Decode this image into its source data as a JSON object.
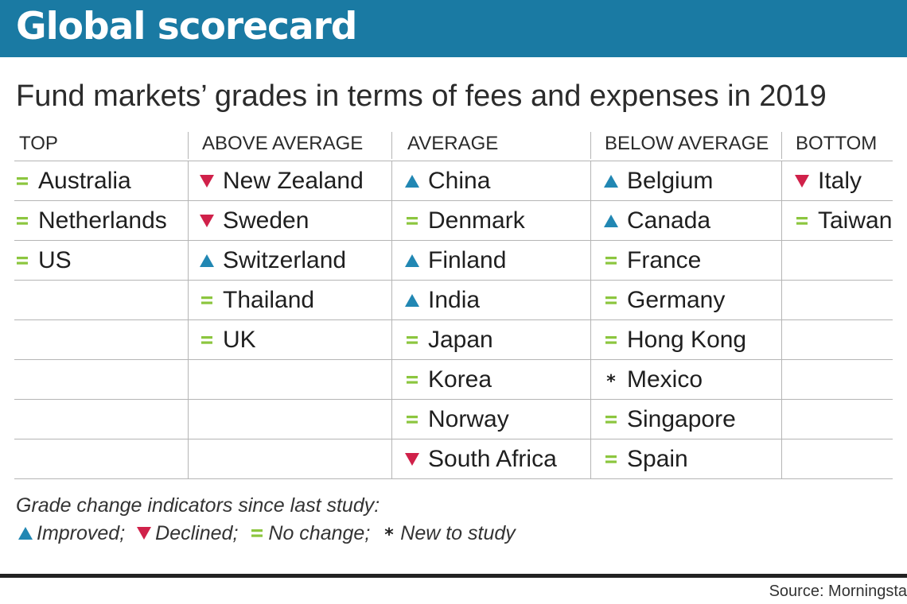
{
  "header": {
    "title": "Global scorecard",
    "subtitle": "Fund markets’ grades in terms of fees and expenses in 2019"
  },
  "colors": {
    "banner": "#1a7aa3",
    "improved": "#2187b3",
    "declined": "#d0214a",
    "no_change": "#8cc63f",
    "new": "#222222"
  },
  "chart_data": {
    "type": "table",
    "columns": [
      "TOP",
      "ABOVE AVERAGE",
      "AVERAGE",
      "BELOW AVERAGE",
      "BOTTOM"
    ],
    "groups": [
      [
        {
          "name": "Australia",
          "change": "no_change"
        },
        {
          "name": "Netherlands",
          "change": "no_change"
        },
        {
          "name": "US",
          "change": "no_change"
        }
      ],
      [
        {
          "name": "New Zealand",
          "change": "declined"
        },
        {
          "name": "Sweden",
          "change": "declined"
        },
        {
          "name": "Switzerland",
          "change": "improved"
        },
        {
          "name": "Thailand",
          "change": "no_change"
        },
        {
          "name": "UK",
          "change": "no_change"
        }
      ],
      [
        {
          "name": "China",
          "change": "improved"
        },
        {
          "name": "Denmark",
          "change": "no_change"
        },
        {
          "name": "Finland",
          "change": "improved"
        },
        {
          "name": "India",
          "change": "improved"
        },
        {
          "name": "Japan",
          "change": "no_change"
        },
        {
          "name": "Korea",
          "change": "no_change"
        },
        {
          "name": "Norway",
          "change": "no_change"
        },
        {
          "name": "South Africa",
          "change": "declined"
        }
      ],
      [
        {
          "name": "Belgium",
          "change": "improved"
        },
        {
          "name": "Canada",
          "change": "improved"
        },
        {
          "name": "France",
          "change": "no_change"
        },
        {
          "name": "Germany",
          "change": "no_change"
        },
        {
          "name": "Hong Kong",
          "change": "no_change"
        },
        {
          "name": "Mexico",
          "change": "new"
        },
        {
          "name": "Singapore",
          "change": "no_change"
        },
        {
          "name": "Spain",
          "change": "no_change"
        }
      ],
      [
        {
          "name": "Italy",
          "change": "declined"
        },
        {
          "name": "Taiwan",
          "change": "no_change"
        }
      ]
    ]
  },
  "legend": {
    "heading": "Grade change indicators since last study:",
    "items": [
      {
        "key": "improved",
        "label": "Improved;"
      },
      {
        "key": "declined",
        "label": "Declined;"
      },
      {
        "key": "no_change",
        "label": "No change;"
      },
      {
        "key": "new",
        "label": "New to study"
      }
    ]
  },
  "source": "Source: Morningsta"
}
